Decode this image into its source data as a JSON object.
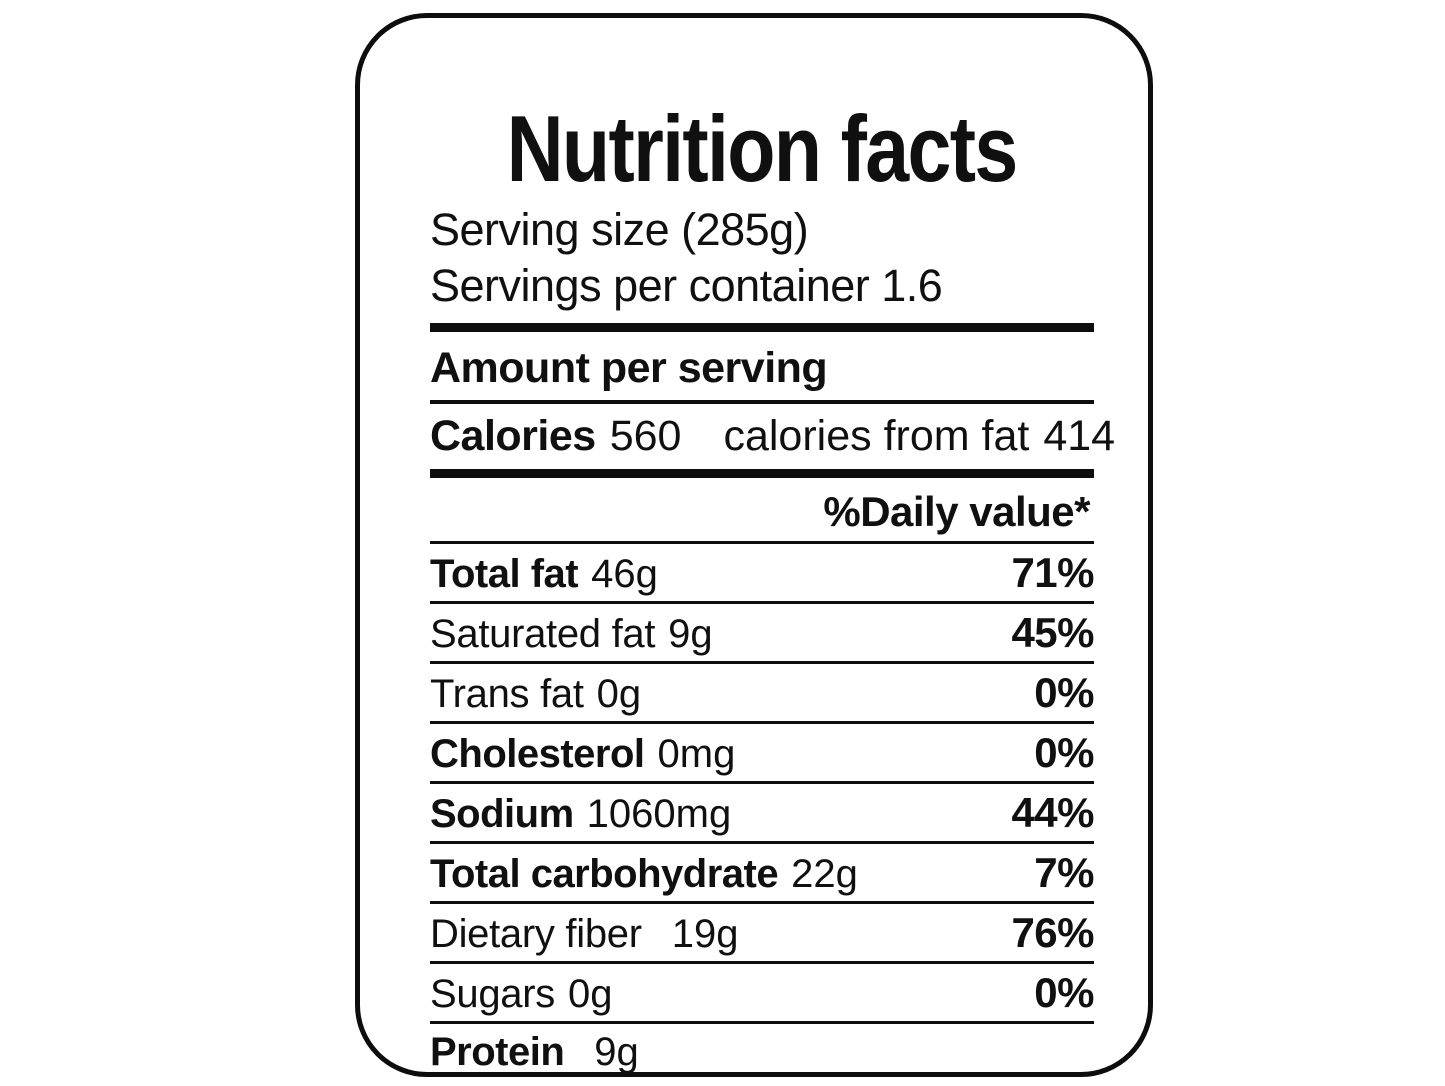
{
  "label": {
    "title": "Nutrition facts",
    "serving_size": "Serving size (285g)",
    "servings_per_container": "Servings per container 1.6",
    "amount_per_serving": "Amount per serving",
    "calories": {
      "label": "Calories",
      "value": "560",
      "from_fat_label": "calories from fat",
      "from_fat_value": "414"
    },
    "daily_value_header": "%Daily value*",
    "rows": [
      {
        "name": "Total fat",
        "amount": "46g",
        "percent": "71%"
      },
      {
        "name": "Saturated fat",
        "amount": "9g",
        "percent": "45%"
      },
      {
        "name": "Trans fat",
        "amount": "0g",
        "percent": "0%"
      },
      {
        "name": "Cholesterol",
        "amount": "0mg",
        "percent": "0%"
      },
      {
        "name": "Sodium",
        "amount": "1060mg",
        "percent": "44%"
      },
      {
        "name": "Total carbohydrate",
        "amount": "22g",
        "percent": "7%"
      },
      {
        "name": "Dietary fiber",
        "amount": "19g",
        "percent": "76%"
      },
      {
        "name": "Sugars",
        "amount": "0g",
        "percent": "0%"
      },
      {
        "name": "Protein",
        "amount": "9g",
        "percent": ""
      }
    ],
    "colors": {
      "ink": "#0d0d0d",
      "background": "#ffffff"
    }
  }
}
